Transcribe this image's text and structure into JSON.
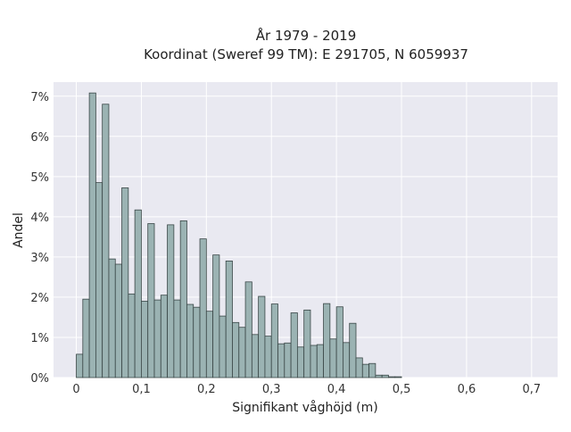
{
  "chart_data": {
    "type": "bar",
    "title_line1": "År 1979 - 2019",
    "title_line2": "Koordinat (Sweref 99 TM): E 291705, N 6059937",
    "xlabel": "Signifikant våghöjd (m)",
    "ylabel": "Andel",
    "xlim": [
      -0.035,
      0.74
    ],
    "ylim": [
      0,
      7.35
    ],
    "x_ticks": [
      0,
      0.1,
      0.2,
      0.3,
      0.4,
      0.5,
      0.6,
      0.7
    ],
    "x_tick_labels": [
      "0",
      "0,1",
      "0,2",
      "0,3",
      "0,4",
      "0,5",
      "0,6",
      "0,7"
    ],
    "y_ticks": [
      0,
      1,
      2,
      3,
      4,
      5,
      6,
      7
    ],
    "y_tick_labels": [
      "0%",
      "1%",
      "2%",
      "3%",
      "4%",
      "5%",
      "6%",
      "7%"
    ],
    "bin_start": 0,
    "bin_width": 0.01,
    "values": [
      0.58,
      1.95,
      7.08,
      4.85,
      6.8,
      2.95,
      2.82,
      4.72,
      2.08,
      4.17,
      1.9,
      3.83,
      1.93,
      2.05,
      3.8,
      1.93,
      3.9,
      1.82,
      1.75,
      3.45,
      1.65,
      3.05,
      1.53,
      2.9,
      1.37,
      1.25,
      2.38,
      1.07,
      2.02,
      1.03,
      1.83,
      0.84,
      0.86,
      1.61,
      0.76,
      1.68,
      0.8,
      0.82,
      1.84,
      0.96,
      1.76,
      0.87,
      1.35,
      0.49,
      0.33,
      0.35,
      0.06,
      0.06,
      0.02,
      0.02
    ],
    "grid": true,
    "colors": {
      "bar_fill": "#9bb3b3",
      "bar_edge": "#3a4747",
      "plot_bg": "#e9e9f1",
      "grid": "#ffffff"
    }
  }
}
